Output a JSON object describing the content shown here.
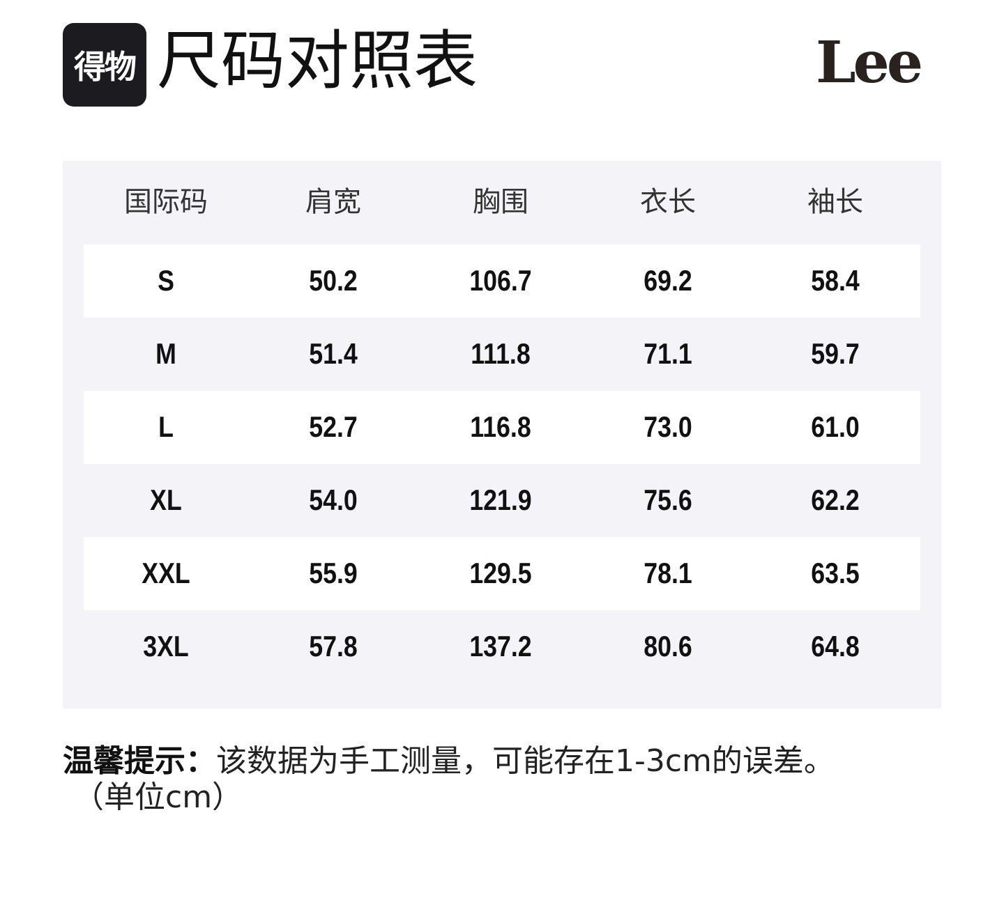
{
  "header": {
    "logo": "得物",
    "title": "尺码对照表",
    "brand": "Lee"
  },
  "table": {
    "columns": [
      "国际码",
      "肩宽",
      "胸围",
      "衣长",
      "袖长"
    ],
    "rows": [
      [
        "S",
        "50.2",
        "106.7",
        "69.2",
        "58.4"
      ],
      [
        "M",
        "51.4",
        "111.8",
        "71.1",
        "59.7"
      ],
      [
        "L",
        "52.7",
        "116.8",
        "73.0",
        "61.0"
      ],
      [
        "XL",
        "54.0",
        "121.9",
        "75.6",
        "62.2"
      ],
      [
        "XXL",
        "55.9",
        "129.5",
        "78.1",
        "63.5"
      ],
      [
        "3XL",
        "57.8",
        "137.2",
        "80.6",
        "64.8"
      ]
    ]
  },
  "note": {
    "label": "温馨提示：",
    "text": "该数据为手工测量，可能存在1-3cm的误差。",
    "unit": "（单位cm）"
  }
}
